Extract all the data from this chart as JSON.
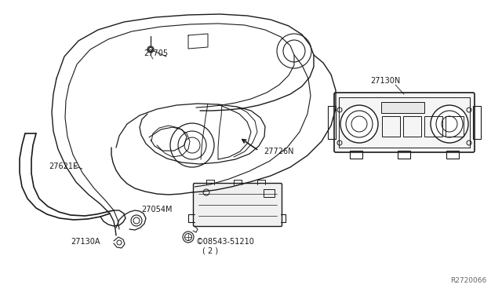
{
  "bg_color": "#ffffff",
  "line_color": "#1a1a1a",
  "diagram_id": "R2720066",
  "fig_width": 6.4,
  "fig_height": 3.72,
  "dpi": 100,
  "labels": {
    "27705": [
      183,
      72,
      "left"
    ],
    "27621E": [
      62,
      212,
      "left"
    ],
    "27726N": [
      336,
      196,
      "left"
    ],
    "27054M": [
      182,
      271,
      "left"
    ],
    "27130A": [
      92,
      310,
      "left"
    ],
    "08543": [
      248,
      312,
      "left"
    ],
    "27130N": [
      472,
      103,
      "left"
    ]
  }
}
